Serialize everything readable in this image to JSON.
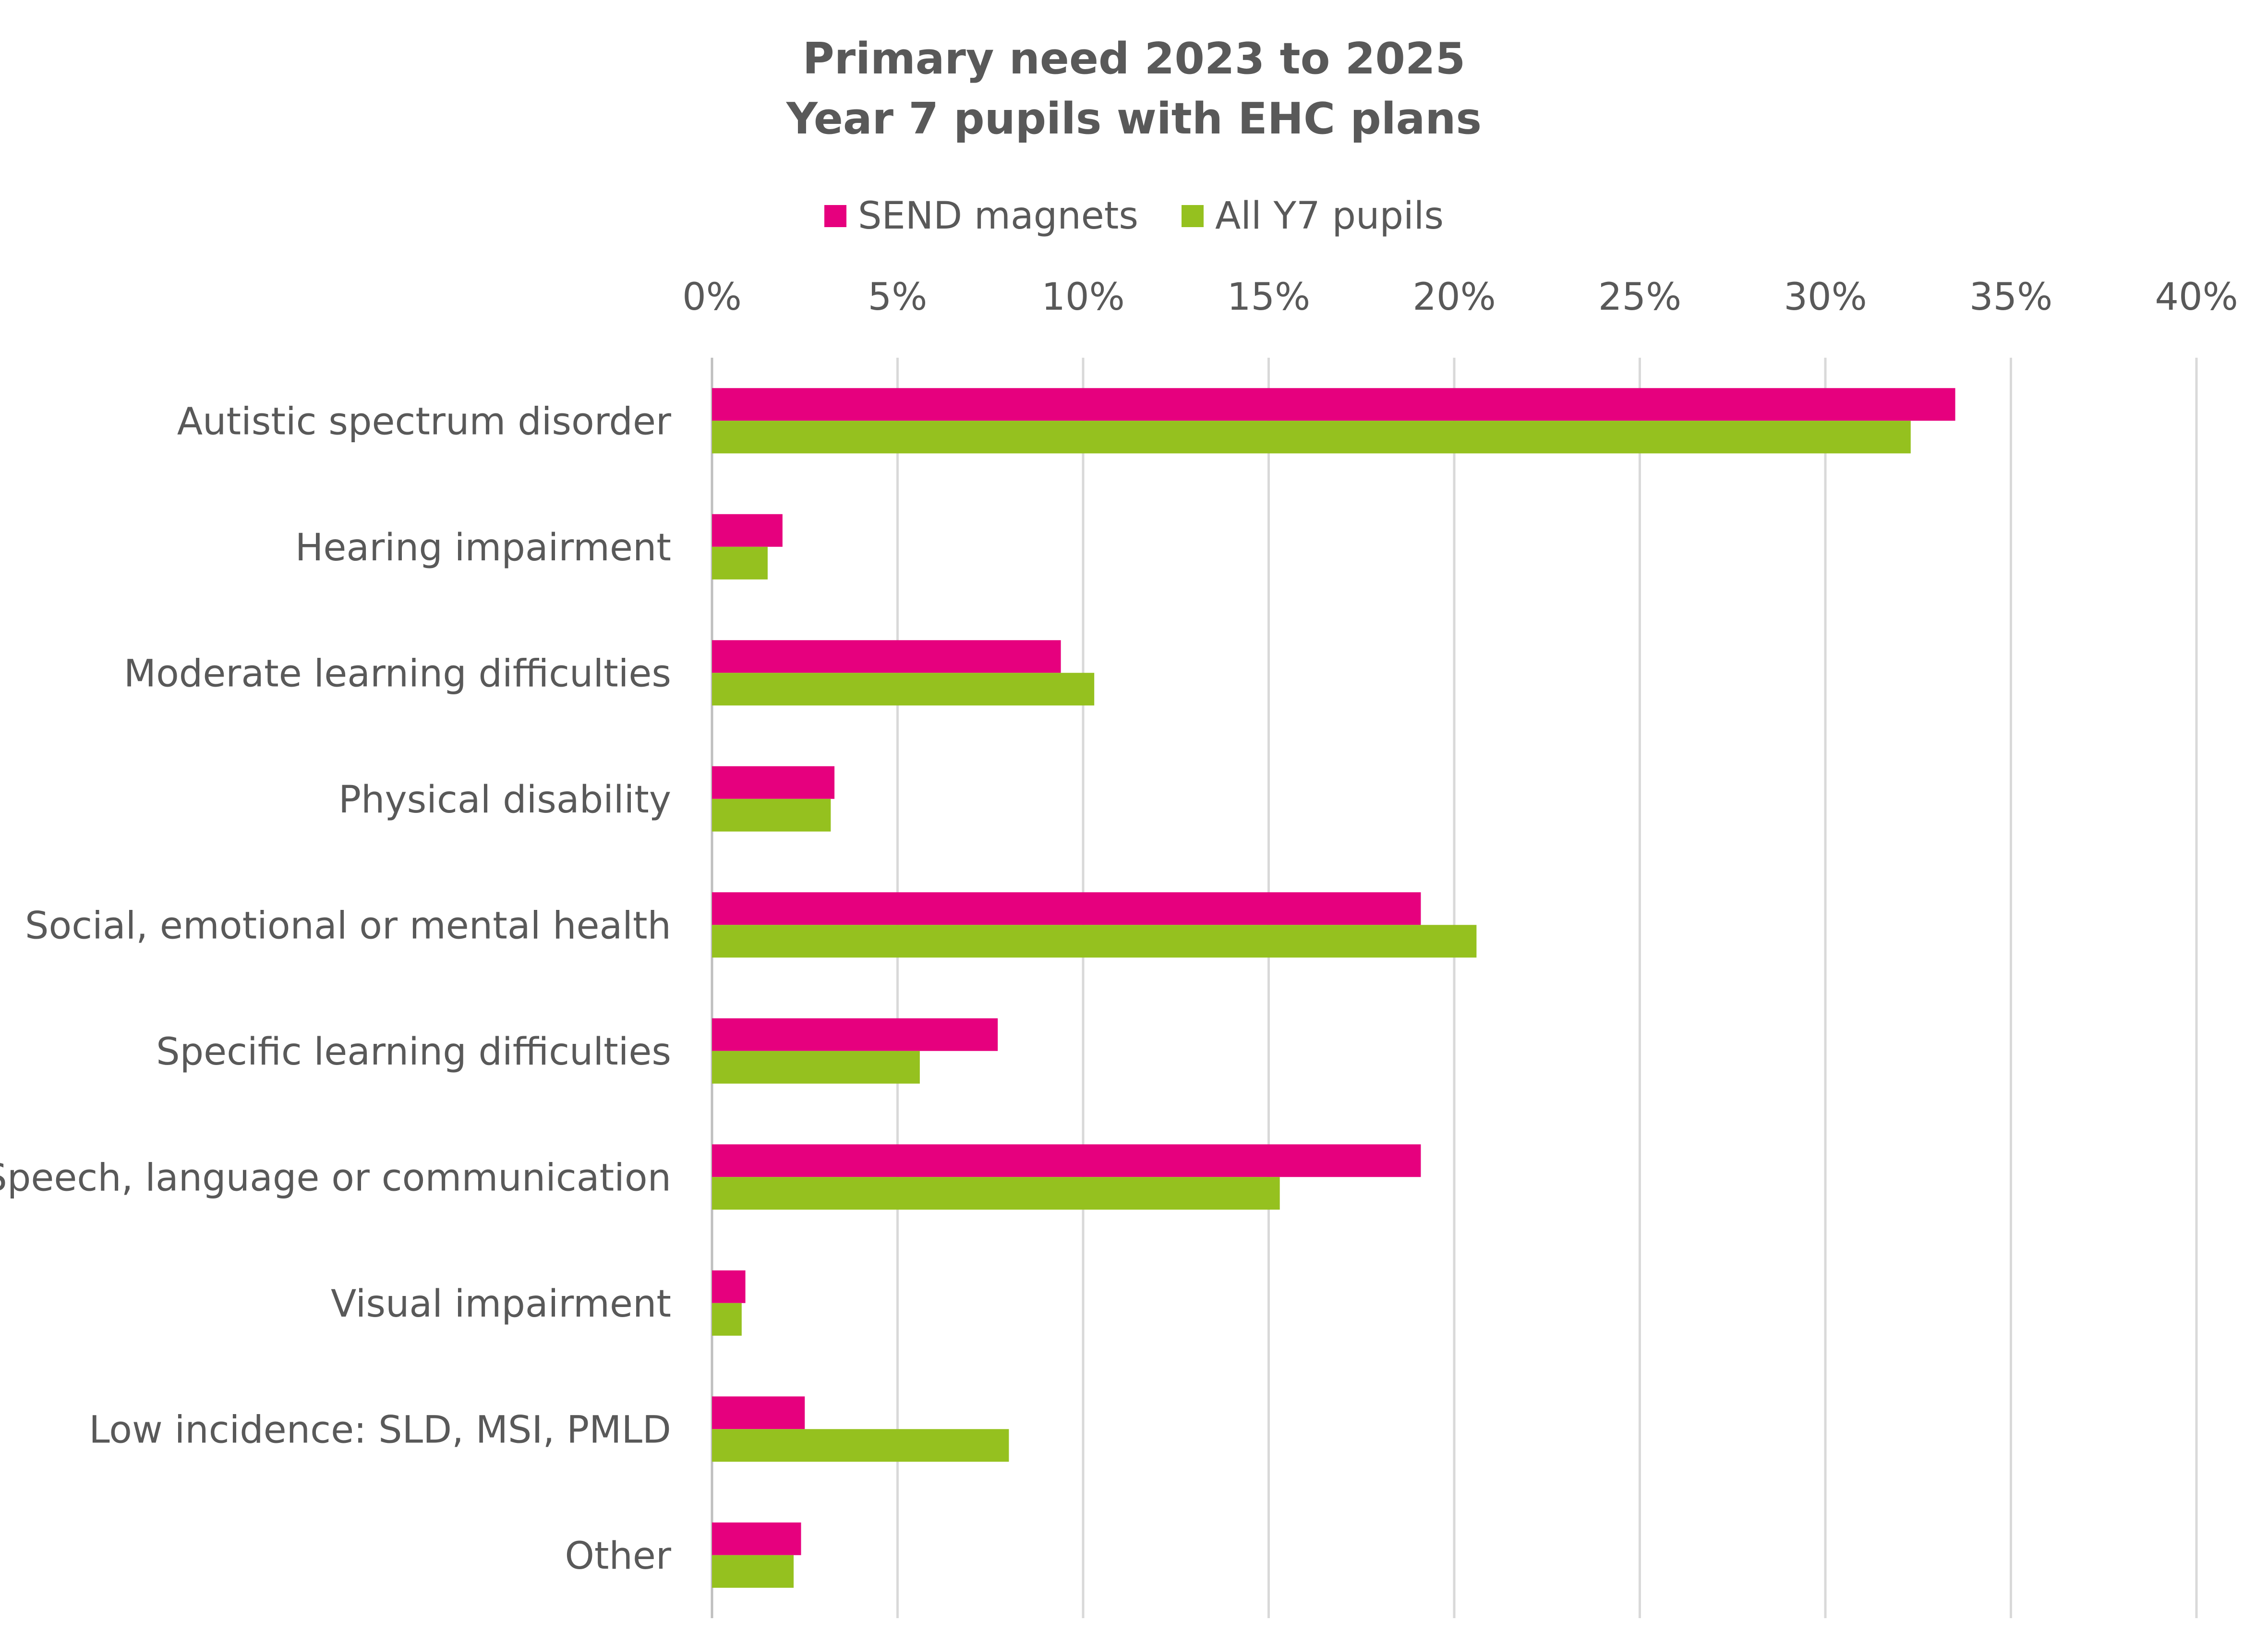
{
  "chart_data": {
    "type": "bar",
    "orientation": "horizontal",
    "title_lines": [
      "Primary need 2023 to 2025",
      "Year 7 pupils with EHC plans"
    ],
    "categories": [
      "Autistic spectrum disorder",
      "Hearing impairment",
      "Moderate learning difficulties",
      "Physical disability",
      "Social, emotional or mental health",
      "Specific learning difficulties",
      "Speech, language or communication",
      "Visual impairment",
      "Low incidence: SLD, MSI, PMLD",
      "Other"
    ],
    "series": [
      {
        "name": "SEND magnets",
        "color": "#E6007E",
        "values": [
          33.5,
          1.9,
          9.4,
          3.3,
          19.1,
          7.7,
          19.1,
          0.9,
          2.5,
          2.4
        ]
      },
      {
        "name": "All Y7 pupils",
        "color": "#95C11F",
        "values": [
          32.3,
          1.5,
          10.3,
          3.2,
          20.6,
          5.6,
          15.3,
          0.8,
          8.0,
          2.2
        ]
      }
    ],
    "x_ticks": [
      "0%",
      "5%",
      "10%",
      "15%",
      "20%",
      "25%",
      "30%",
      "35%",
      "40%"
    ],
    "xlim": [
      0,
      40
    ],
    "x_axis_position": "top",
    "grid": true,
    "legend_position": "top"
  }
}
